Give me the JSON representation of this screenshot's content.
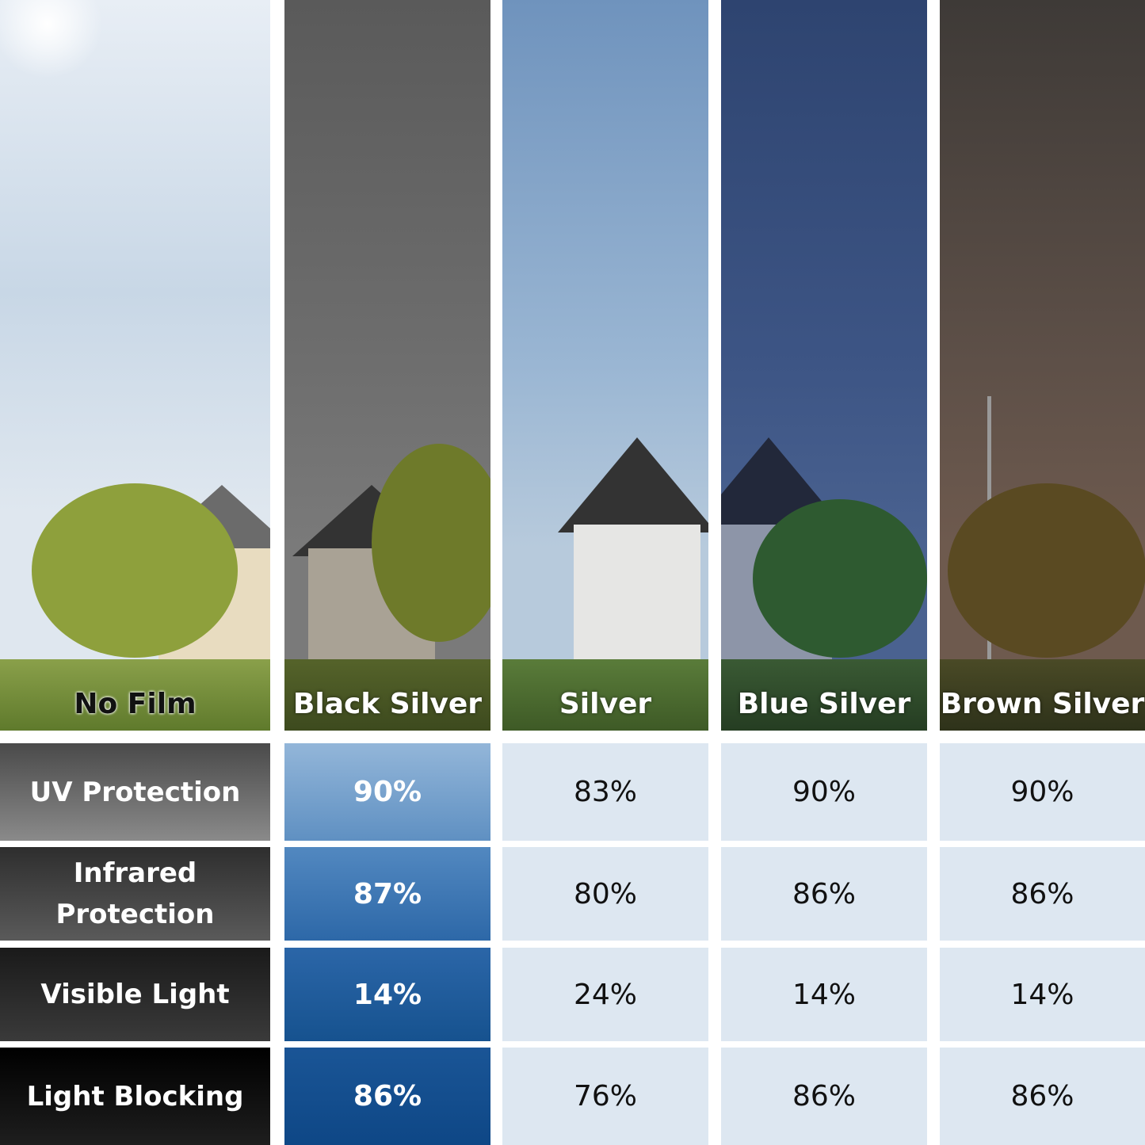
{
  "films": [
    {
      "name": "No Film",
      "tint": "#c9d6e2"
    },
    {
      "name": "Black Silver",
      "tint": "#5c5c5c"
    },
    {
      "name": "Silver",
      "tint": "#8fb0cf"
    },
    {
      "name": "Blue Silver",
      "tint": "#34497a"
    },
    {
      "name": "Brown Silver",
      "tint": "#5a4a40"
    }
  ],
  "rows": [
    {
      "label": "UV Protection",
      "values": [
        "90%",
        "83%",
        "90%",
        "90%"
      ]
    },
    {
      "label": "Infrared Protection",
      "values": [
        "87%",
        "80%",
        "86%",
        "86%"
      ]
    },
    {
      "label": "Visible Light",
      "values": [
        "14%",
        "24%",
        "14%",
        "14%"
      ]
    },
    {
      "label": "Light Blocking",
      "values": [
        "86%",
        "76%",
        "86%",
        "86%"
      ]
    }
  ],
  "colors": {
    "cell_bg": "#dde7f1",
    "highlight_blue": "#1a5596"
  }
}
